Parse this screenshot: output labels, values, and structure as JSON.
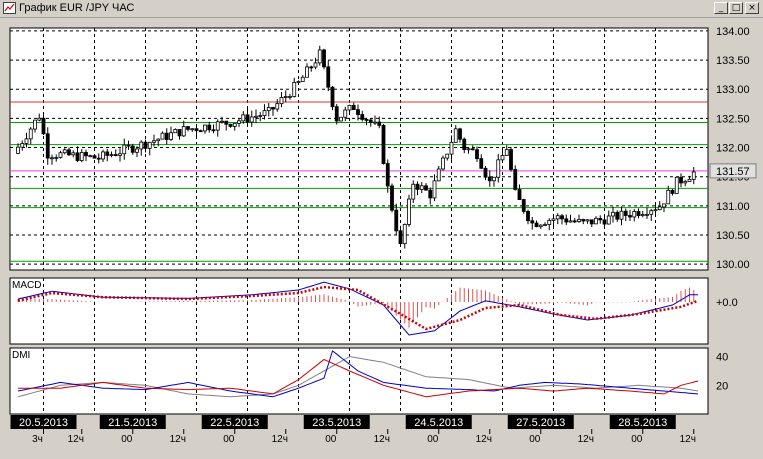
{
  "window": {
    "title": "График EUR /JPY  ЧАС",
    "minimize_glyph": "_",
    "maximize_glyph": "□",
    "close_glyph": "×"
  },
  "colors": {
    "background": "#ffffff",
    "grid": "#000000",
    "up_candle": "#ffffff",
    "down_candle": "#000000",
    "green_levels": "#00a000",
    "red_levels": "#e03030",
    "pink_level": "#e040e0",
    "macd_line": "#0000cc",
    "macd_signal": "#cc0000",
    "macd_hist": "#e05050",
    "dmi_plus": "#0000cc",
    "dmi_minus": "#cc0000",
    "dmi_adx": "#808080",
    "price_label_bg": "#e0e0e0",
    "date_label_bg": "#000000",
    "date_label_text": "#ffffff"
  },
  "chart_data": [
    {
      "type": "candlestick",
      "price_axis": [
        "134.00",
        "133.50",
        "133.00",
        "132.50",
        "132.00",
        "131.50",
        "131.00",
        "130.50",
        "130.00"
      ],
      "ylim": [
        129.9,
        134.05
      ],
      "last_price": "131.57",
      "levels_green": [
        132.43,
        131.3,
        130.97,
        130.05
      ],
      "levels_red": [
        132.78
      ],
      "level_pink": 131.6,
      "levels_thin": [
        132.05
      ],
      "x_date_labels": [
        "20.5.2013",
        "21.5.2013",
        "22.5.2013",
        "23.5.2013",
        "24.5.2013",
        "27.5.2013",
        "28.5.2013"
      ],
      "x_time_labels": [
        {
          "text": "3ч",
          "bars": 6
        },
        {
          "text": "12ч",
          "bars": 15
        },
        {
          "text": "00",
          "bars": 27
        },
        {
          "text": "12ч",
          "bars": 39
        },
        {
          "text": "00",
          "bars": 51
        },
        {
          "text": "12ч",
          "bars": 63
        },
        {
          "text": "00",
          "bars": 75
        },
        {
          "text": "12ч",
          "bars": 87
        },
        {
          "text": "00",
          "bars": 99
        },
        {
          "text": "12ч",
          "bars": 111
        },
        {
          "text": "00",
          "bars": 123
        },
        {
          "text": "12ч",
          "bars": 135
        },
        {
          "text": "00",
          "bars": 147
        },
        {
          "text": "12ч",
          "bars": 159
        }
      ],
      "date_label_bars": [
        6,
        27,
        51,
        75,
        99,
        123,
        147
      ],
      "bars_total": 160,
      "close_anchors": [
        [
          0,
          131.9
        ],
        [
          6,
          132.55
        ],
        [
          8,
          131.9
        ],
        [
          20,
          131.82
        ],
        [
          30,
          132.05
        ],
        [
          40,
          132.3
        ],
        [
          52,
          132.45
        ],
        [
          60,
          132.6
        ],
        [
          67,
          133.1
        ],
        [
          72,
          133.6
        ],
        [
          76,
          132.5
        ],
        [
          80,
          132.7
        ],
        [
          86,
          132.3
        ],
        [
          88,
          131.3
        ],
        [
          91,
          130.3
        ],
        [
          94,
          131.4
        ],
        [
          98,
          131.2
        ],
        [
          104,
          132.3
        ],
        [
          106,
          132.0
        ],
        [
          109,
          131.9
        ],
        [
          112,
          131.4
        ],
        [
          116,
          132.0
        ],
        [
          118,
          131.2
        ],
        [
          122,
          130.7
        ],
        [
          128,
          130.8
        ],
        [
          134,
          130.7
        ],
        [
          144,
          130.85
        ],
        [
          152,
          131.0
        ],
        [
          156,
          131.4
        ],
        [
          160,
          131.57
        ]
      ]
    },
    {
      "type": "line",
      "label": "MACD",
      "zero_label": "+0.0",
      "ylim": [
        -0.7,
        0.4
      ],
      "series": [
        {
          "values": [
            [
              0,
              0.05
            ],
            [
              8,
              0.18
            ],
            [
              20,
              0.08
            ],
            [
              40,
              0.06
            ],
            [
              55,
              0.12
            ],
            [
              66,
              0.2
            ],
            [
              72,
              0.33
            ],
            [
              78,
              0.22
            ],
            [
              86,
              -0.05
            ],
            [
              92,
              -0.55
            ],
            [
              98,
              -0.48
            ],
            [
              104,
              -0.15
            ],
            [
              110,
              0.02
            ],
            [
              118,
              -0.08
            ],
            [
              126,
              -0.2
            ],
            [
              134,
              -0.3
            ],
            [
              144,
              -0.22
            ],
            [
              154,
              -0.05
            ],
            [
              158,
              0.12
            ],
            [
              160,
              0.12
            ]
          ]
        },
        {
          "values": [
            [
              0,
              0.02
            ],
            [
              8,
              0.15
            ],
            [
              20,
              0.08
            ],
            [
              40,
              0.05
            ],
            [
              55,
              0.1
            ],
            [
              66,
              0.15
            ],
            [
              72,
              0.25
            ],
            [
              80,
              0.2
            ],
            [
              90,
              -0.2
            ],
            [
              96,
              -0.45
            ],
            [
              104,
              -0.3
            ],
            [
              110,
              -0.1
            ],
            [
              118,
              -0.05
            ],
            [
              128,
              -0.22
            ],
            [
              136,
              -0.28
            ],
            [
              146,
              -0.2
            ],
            [
              156,
              -0.08
            ],
            [
              160,
              0.02
            ]
          ]
        }
      ]
    },
    {
      "type": "line",
      "label": "DMI",
      "axis": [
        "40",
        "20"
      ],
      "ylim": [
        0,
        46
      ],
      "series": [
        {
          "values": [
            [
              0,
              16
            ],
            [
              10,
              22
            ],
            [
              20,
              18
            ],
            [
              30,
              17
            ],
            [
              40,
              22
            ],
            [
              50,
              16
            ],
            [
              60,
              12
            ],
            [
              66,
              18
            ],
            [
              72,
              25
            ],
            [
              74,
              44
            ],
            [
              80,
              30
            ],
            [
              86,
              22
            ],
            [
              96,
              18
            ],
            [
              106,
              17
            ],
            [
              112,
              16
            ],
            [
              118,
              20
            ],
            [
              124,
              22
            ],
            [
              132,
              21
            ],
            [
              140,
              19
            ],
            [
              148,
              17
            ],
            [
              156,
              15
            ],
            [
              160,
              14
            ]
          ]
        },
        {
          "values": [
            [
              0,
              18
            ],
            [
              10,
              18
            ],
            [
              20,
              22
            ],
            [
              30,
              18
            ],
            [
              40,
              17
            ],
            [
              50,
              18
            ],
            [
              60,
              14
            ],
            [
              66,
              24
            ],
            [
              72,
              38
            ],
            [
              78,
              30
            ],
            [
              86,
              20
            ],
            [
              96,
              12
            ],
            [
              106,
              16
            ],
            [
              112,
              17
            ],
            [
              118,
              18
            ],
            [
              126,
              16
            ],
            [
              134,
              18
            ],
            [
              144,
              16
            ],
            [
              152,
              14
            ],
            [
              156,
              20
            ],
            [
              160,
              23
            ]
          ]
        },
        {
          "values": [
            [
              0,
              12
            ],
            [
              10,
              20
            ],
            [
              20,
              22
            ],
            [
              30,
              20
            ],
            [
              40,
              14
            ],
            [
              50,
              12
            ],
            [
              60,
              14
            ],
            [
              66,
              20
            ],
            [
              72,
              30
            ],
            [
              78,
              40
            ],
            [
              86,
              36
            ],
            [
              96,
              26
            ],
            [
              106,
              24
            ],
            [
              116,
              18
            ],
            [
              126,
              20
            ],
            [
              136,
              18
            ],
            [
              146,
              20
            ],
            [
              156,
              18
            ],
            [
              160,
              16
            ]
          ]
        }
      ]
    }
  ]
}
